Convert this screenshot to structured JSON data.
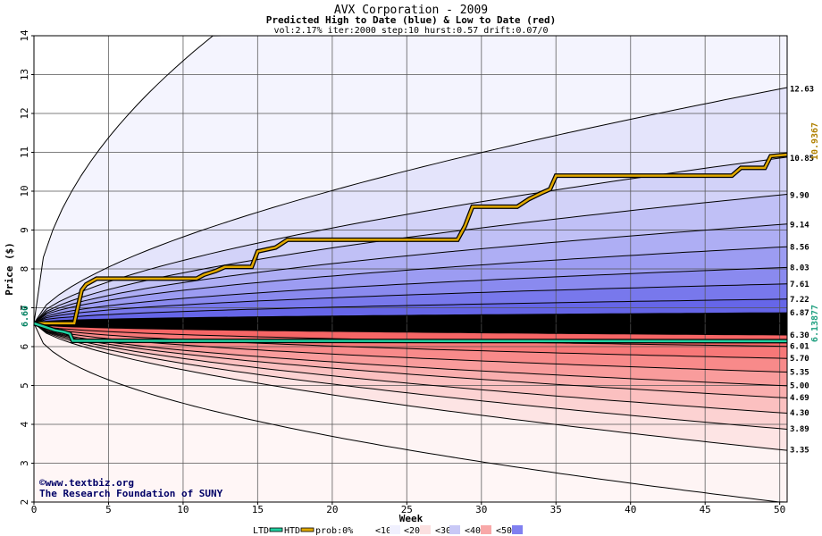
{
  "chart_data": {
    "type": "area",
    "title": "AVX Corporation - 2009",
    "subtitle": "Predicted High to Date (blue) &  Low to Date (red)",
    "params": "vol:2.17% iter:2000 step:10 hurst:0.57 drift:0.07/0",
    "xlabel": "Week",
    "ylabel": "Price ($)",
    "xlim": [
      0,
      50.5
    ],
    "ylim": [
      2,
      14
    ],
    "x_ticks": [
      0,
      5,
      10,
      15,
      20,
      25,
      30,
      35,
      40,
      45,
      50
    ],
    "y_ticks": [
      2,
      3,
      4,
      5,
      6,
      7,
      8,
      9,
      10,
      11,
      12,
      13,
      14
    ],
    "grid": true,
    "start_price": 6.6,
    "start_label": "6.60",
    "high_levels": [
      12.63,
      10.85,
      9.9,
      9.14,
      8.56,
      8.03,
      7.61,
      7.22,
      6.87
    ],
    "high_labels": [
      "12.63",
      "10.85",
      "9.90",
      "9.14",
      "8.56",
      "8.03",
      "7.61",
      "7.22",
      "6.87"
    ],
    "low_levels": [
      6.3,
      6.01,
      5.7,
      5.35,
      5.0,
      4.69,
      4.3,
      3.89,
      3.35
    ],
    "low_labels": [
      "6.30",
      "6.01",
      "5.70",
      "5.35",
      "5.00",
      "4.69",
      "4.30",
      "3.89",
      "3.35"
    ],
    "outer_high_level_at_week_12": 14.0,
    "outer_low_level_at_week_50": 2.0,
    "htd_series": {
      "name": "HTD",
      "end_label": "10.9367",
      "x": [
        0,
        2.7,
        3.2,
        3.5,
        4.2,
        10.9,
        11.4,
        12.2,
        12.8,
        14.6,
        15.0,
        16.2,
        17.0,
        28.4,
        28.9,
        29.4,
        32.4,
        33.2,
        34.0,
        34.6,
        35.0,
        46.8,
        47.4,
        49.0,
        49.4,
        50.5
      ],
      "y": [
        6.6,
        6.6,
        7.45,
        7.6,
        7.75,
        7.75,
        7.85,
        7.95,
        8.05,
        8.05,
        8.45,
        8.55,
        8.75,
        8.75,
        9.1,
        9.6,
        9.6,
        9.8,
        9.95,
        10.05,
        10.4,
        10.4,
        10.6,
        10.6,
        10.9,
        10.94
      ]
    },
    "ltd_series": {
      "name": "LTD",
      "end_label": "6.13877",
      "x": [
        0,
        0.8,
        1.4,
        2.0,
        2.4,
        2.6,
        50.5
      ],
      "y": [
        6.6,
        6.5,
        6.42,
        6.38,
        6.33,
        6.15,
        6.14
      ]
    },
    "legend": {
      "placement": "bottom-center",
      "items": [
        "LTD",
        "HTD",
        "prob:0%",
        "<10%",
        "<20%",
        "<30%",
        "<40%",
        "<50%"
      ]
    },
    "band_colors_high": [
      "#f4f4fe",
      "#e4e4fb",
      "#d2d2f8",
      "#c0c0f6",
      "#aeaef4",
      "#9c9cf2",
      "#8a8aef",
      "#7878ec",
      "#6666e8"
    ],
    "band_colors_low": [
      "#fef4f4",
      "#fde4e4",
      "#fcd2d2",
      "#fbc0c0",
      "#faaeae",
      "#f99c9c",
      "#f88a8a",
      "#f77878",
      "#f66666"
    ],
    "legend_colors": [
      "#ffffff",
      "#f0f0fe",
      "#fbe0e0",
      "#c8c8f6",
      "#f8a8a8",
      "#8080f0"
    ],
    "htd_color": "#e0a800",
    "ltd_color": "#20d0a0"
  },
  "watermark": {
    "line1": "©www.textbiz.org",
    "line2": "The Research Foundation of SUNY"
  }
}
